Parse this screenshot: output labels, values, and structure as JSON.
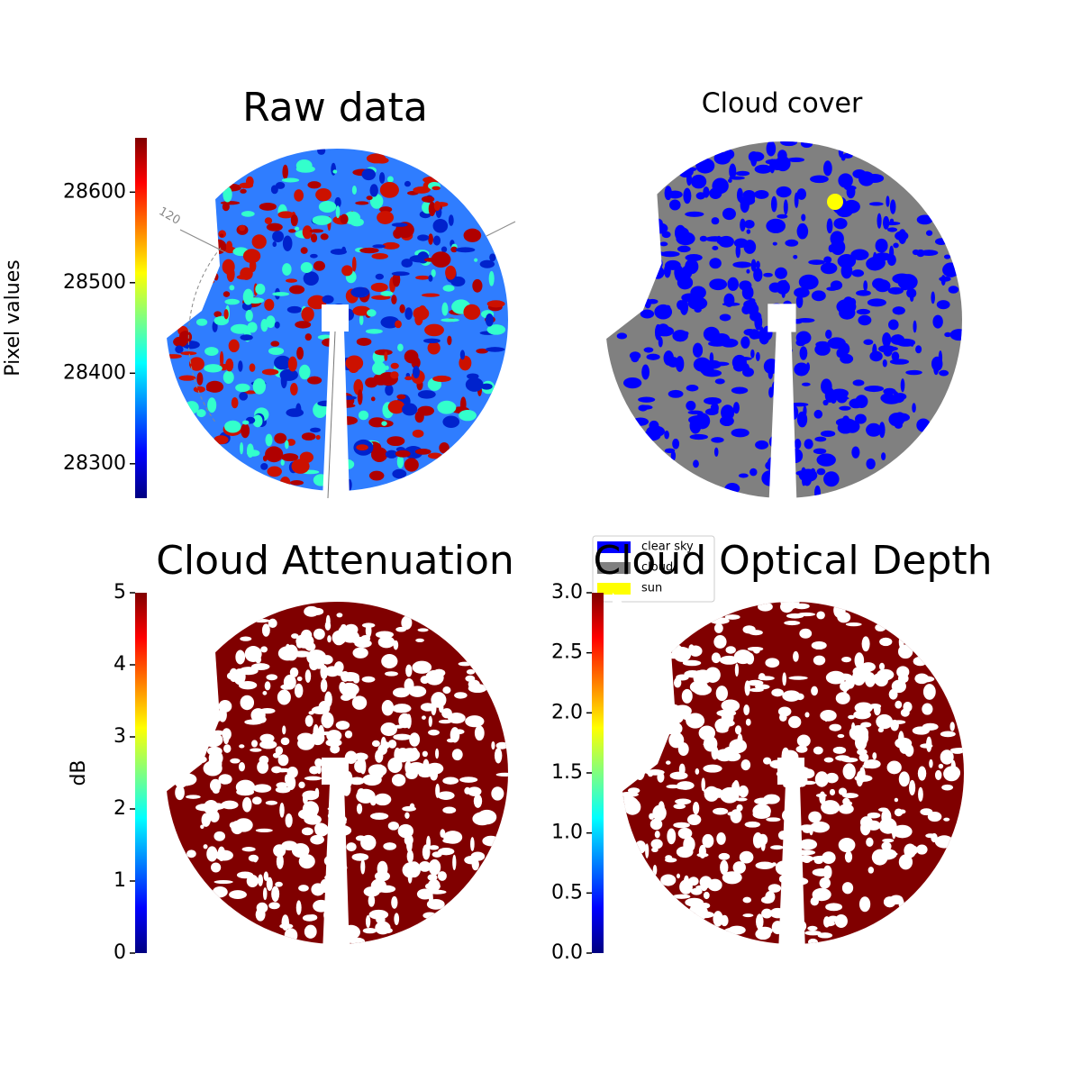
{
  "chart_data": [
    {
      "type": "image",
      "title": "Raw data",
      "colormap": "jet",
      "clabel": "Pixel values",
      "clim": [
        28262,
        28660
      ],
      "cticks": [
        28300,
        28400,
        28500,
        28600
      ],
      "annotations": [
        "120"
      ]
    },
    {
      "type": "image",
      "title": "Cloud cover",
      "legend": [
        {
          "name": "clear sky",
          "color": "#0000ff"
        },
        {
          "name": "cloud",
          "color": "#808080"
        },
        {
          "name": "sun",
          "color": "#ffff00"
        }
      ]
    },
    {
      "type": "image",
      "title": "Cloud Attenuation",
      "colormap": "jet",
      "clabel": "dB",
      "clim": [
        0,
        5
      ],
      "cticks": [
        0,
        1,
        2,
        3,
        4,
        5
      ]
    },
    {
      "type": "image",
      "title": "Cloud Optical Depth",
      "colormap": "jet",
      "clim": [
        0,
        3
      ],
      "cticks": [
        {
          "value": 0,
          "label": "0.0"
        },
        {
          "value": 0.5,
          "label": "0.5"
        },
        {
          "value": 1,
          "label": "1.0"
        },
        {
          "value": 1.5,
          "label": "1.5"
        },
        {
          "value": 2,
          "label": "2.0"
        },
        {
          "value": 2.5,
          "label": "2.5"
        },
        {
          "value": 3,
          "label": "3.0"
        }
      ]
    }
  ]
}
